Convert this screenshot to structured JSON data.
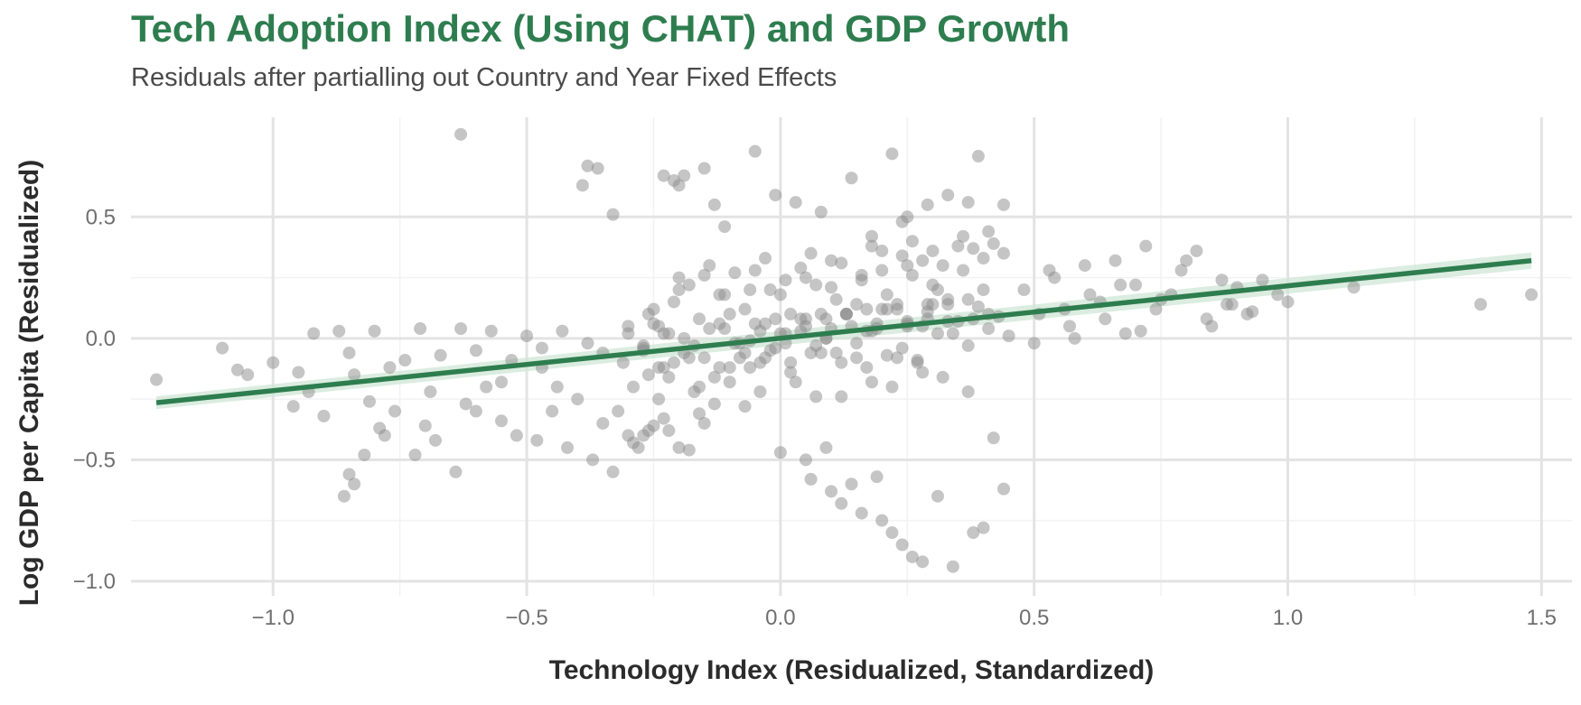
{
  "chart_data": {
    "type": "scatter",
    "title": "Tech Adoption Index (Using CHAT) and GDP Growth",
    "subtitle": "Residuals after partialling out Country and Year Fixed Effects",
    "xlabel": "Technology Index (Residualized, Standardized)",
    "ylabel": "Log GDP per Capita (Residualized)",
    "xlim": [
      -1.28,
      1.56
    ],
    "ylim": [
      -1.06,
      0.91
    ],
    "x_ticks": [
      -1.0,
      -0.5,
      0.0,
      0.5,
      1.0,
      1.5
    ],
    "x_tick_labels": [
      "−1.0",
      "−0.5",
      "0.0",
      "0.5",
      "1.0",
      "1.5"
    ],
    "y_ticks": [
      -1.0,
      -0.5,
      0.0,
      0.5
    ],
    "y_tick_labels": [
      "−1.0",
      "−0.5",
      "0.0",
      "0.5"
    ],
    "grid": true,
    "point_color": "#8c8c8c",
    "line_color": "#2e7d4f",
    "ci_color": "#cfe6d6",
    "fit_line": {
      "x": [
        -1.23,
        1.48
      ],
      "y": [
        -0.265,
        0.32
      ]
    },
    "series": [
      {
        "x": [
          -0.63,
          -0.38,
          -0.36,
          -0.39,
          -0.23,
          -0.21,
          -0.19,
          -0.2,
          -0.15,
          -0.13,
          -0.33,
          -0.11,
          -0.05,
          -0.01,
          0.03,
          0.08,
          0.14,
          0.22,
          0.24,
          0.29,
          0.33,
          0.39,
          0.37,
          0.25,
          0.18,
          0.44,
          0.41,
          -1.23,
          -1.1,
          -1.07,
          -1.05,
          -1.0,
          -0.95,
          -0.92,
          -0.87,
          -0.85,
          -0.84,
          -0.8,
          -0.77,
          -0.74,
          -0.71,
          -0.67,
          -0.63,
          -0.6,
          -0.57,
          -0.53,
          -0.5,
          -0.47,
          -0.43,
          -0.38,
          -0.35,
          -0.3,
          -0.27,
          -0.25,
          -0.24,
          -0.86,
          -0.85,
          -0.84,
          -0.82,
          -0.79,
          -0.76,
          -0.69,
          -0.62,
          -0.58,
          -0.55,
          -0.52,
          -0.48,
          -0.45,
          -0.42,
          -0.37,
          -0.33,
          -0.29,
          -0.27,
          -0.25,
          -0.23,
          -0.22,
          -0.2,
          -0.18,
          -0.16,
          -0.15,
          -0.13,
          -0.1,
          -0.08,
          -0.06,
          -0.04,
          -0.02,
          0.0,
          0.02,
          0.05,
          0.07,
          0.09,
          0.11,
          0.13,
          0.15,
          0.17,
          0.19,
          0.21,
          0.23,
          0.25,
          0.27,
          0.29,
          0.31,
          0.33,
          0.35,
          0.37,
          0.39,
          0.41,
          0.43,
          0.45,
          -0.2,
          -0.18,
          -0.14,
          -0.12,
          -0.09,
          -0.06,
          -0.03,
          0.01,
          0.04,
          0.06,
          0.1,
          0.12,
          0.16,
          0.18,
          0.2,
          0.24,
          0.26,
          0.28,
          0.3,
          0.32,
          0.36,
          0.38,
          0.4,
          0.42,
          0.44,
          0.48,
          0.51,
          0.54,
          0.57,
          0.6,
          0.63,
          0.66,
          0.68,
          0.7,
          0.72,
          0.74,
          0.77,
          0.79,
          0.82,
          0.84,
          0.87,
          0.89,
          0.92,
          0.95,
          0.98,
          1.0,
          1.13,
          1.38,
          1.48,
          0.5,
          0.53,
          0.56,
          0.58,
          0.61,
          0.64,
          0.67,
          0.71,
          0.75,
          0.8,
          0.85,
          0.88,
          0.9,
          0.93,
          0.06,
          0.1,
          0.14,
          0.16,
          0.2,
          0.22,
          0.24,
          0.26,
          0.28,
          0.31,
          0.34,
          0.38,
          0.4,
          0.42,
          0.44,
          0.19,
          0.12,
          0.09,
          0.05,
          0.0,
          -0.3,
          -0.28,
          -0.26,
          -0.32,
          -0.35,
          -0.4,
          -0.44,
          -0.47,
          -0.55,
          -0.6,
          -0.64,
          -0.68,
          -0.72,
          -0.9,
          -0.93,
          -0.96,
          -0.78,
          -0.81,
          -0.7,
          -0.3,
          -0.25,
          -0.2,
          -0.15,
          -0.1,
          -0.05,
          0.0,
          0.05,
          0.1,
          0.15,
          0.2,
          0.25,
          0.3,
          0.35,
          0.4,
          -0.29,
          -0.26,
          -0.24,
          -0.21,
          -0.17,
          -0.12,
          -0.07,
          -0.03,
          0.03,
          0.08,
          0.12,
          0.17,
          0.22,
          0.27,
          0.32,
          0.37,
          -0.27,
          -0.22,
          -0.18,
          -0.14,
          -0.09,
          -0.05,
          -0.01,
          0.04,
          0.09,
          0.13,
          0.18,
          0.23,
          0.28,
          0.33,
          0.38,
          -0.26,
          -0.21,
          -0.16,
          -0.11,
          -0.07,
          -0.02,
          0.02,
          0.07,
          0.11,
          0.16,
          0.21,
          0.26,
          0.31,
          0.36,
          -0.24,
          -0.19,
          -0.13,
          -0.08,
          -0.04,
          0.01,
          0.06,
          0.1,
          0.15,
          0.19,
          0.24,
          0.29,
          0.34,
          -0.23,
          -0.17,
          -0.12,
          -0.06,
          -0.01,
          0.04,
          0.08,
          0.14,
          0.2,
          0.25,
          0.3,
          -0.22,
          -0.16,
          -0.1,
          -0.04,
          0.02,
          0.07,
          0.12,
          0.18,
          0.23,
          0.28,
          -0.31,
          -0.27,
          -0.23,
          -0.19,
          -0.15,
          -0.11,
          -0.07,
          -0.03,
          0.01,
          0.05,
          0.09,
          0.13,
          0.17,
          0.21,
          0.25,
          0.29,
          0.33,
          0.37,
          0.41
        ],
        "y": [
          0.84,
          0.71,
          0.7,
          0.63,
          0.67,
          0.65,
          0.67,
          0.63,
          0.7,
          0.55,
          0.51,
          0.46,
          0.77,
          0.59,
          0.56,
          0.52,
          0.66,
          0.76,
          0.48,
          0.55,
          0.59,
          0.75,
          0.56,
          0.5,
          0.42,
          0.55,
          0.44,
          -0.17,
          -0.04,
          -0.13,
          -0.15,
          -0.1,
          -0.14,
          0.02,
          0.03,
          -0.06,
          -0.15,
          0.03,
          -0.12,
          -0.09,
          0.04,
          -0.07,
          0.04,
          -0.05,
          0.03,
          -0.09,
          0.01,
          -0.04,
          0.03,
          -0.02,
          -0.06,
          0.02,
          -0.03,
          0.06,
          0.05,
          -0.65,
          -0.56,
          -0.6,
          -0.48,
          -0.37,
          -0.3,
          -0.22,
          -0.27,
          -0.2,
          -0.34,
          -0.4,
          -0.42,
          -0.3,
          -0.45,
          -0.5,
          -0.55,
          -0.43,
          -0.4,
          -0.36,
          -0.33,
          -0.38,
          -0.45,
          -0.46,
          -0.31,
          -0.35,
          -0.27,
          -0.18,
          -0.08,
          -0.12,
          0.03,
          -0.05,
          0.02,
          -0.1,
          0.05,
          -0.03,
          0.08,
          -0.06,
          0.1,
          -0.02,
          0.12,
          0.04,
          -0.07,
          0.14,
          0.06,
          -0.09,
          0.11,
          0.02,
          0.16,
          0.07,
          -0.03,
          0.13,
          0.04,
          0.09,
          0.01,
          0.25,
          0.22,
          0.3,
          0.18,
          0.27,
          0.2,
          0.33,
          0.24,
          0.29,
          0.35,
          0.21,
          0.31,
          0.26,
          0.38,
          0.28,
          0.34,
          0.4,
          0.32,
          0.36,
          0.3,
          0.42,
          0.37,
          0.33,
          0.39,
          0.35,
          0.2,
          0.1,
          0.25,
          0.05,
          0.3,
          0.15,
          0.32,
          0.02,
          0.22,
          0.38,
          0.12,
          0.18,
          0.28,
          0.36,
          0.08,
          0.24,
          0.14,
          0.1,
          0.24,
          0.18,
          0.15,
          0.21,
          0.14,
          0.18,
          -0.02,
          0.28,
          0.12,
          0.0,
          0.18,
          0.08,
          0.22,
          0.03,
          0.16,
          0.32,
          0.05,
          0.14,
          0.21,
          0.11,
          -0.58,
          -0.63,
          -0.6,
          -0.72,
          -0.75,
          -0.8,
          -0.85,
          -0.9,
          -0.92,
          -0.65,
          -0.94,
          -0.8,
          -0.78,
          -0.41,
          -0.62,
          -0.57,
          -0.68,
          -0.45,
          -0.5,
          -0.47,
          -0.4,
          -0.45,
          -0.38,
          -0.3,
          -0.35,
          -0.25,
          -0.2,
          -0.12,
          -0.18,
          -0.3,
          -0.55,
          -0.42,
          -0.48,
          -0.32,
          -0.22,
          -0.28,
          -0.4,
          -0.26,
          -0.36,
          0.05,
          0.12,
          0.2,
          0.26,
          0.1,
          0.28,
          0.18,
          0.25,
          0.32,
          0.14,
          0.36,
          0.3,
          0.22,
          0.38,
          0.2,
          -0.2,
          -0.15,
          -0.25,
          -0.1,
          -0.22,
          -0.12,
          -0.28,
          -0.08,
          -0.18,
          -0.06,
          -0.24,
          -0.12,
          -0.2,
          -0.1,
          -0.16,
          -0.22,
          -0.05,
          0.02,
          -0.08,
          0.04,
          -0.02,
          0.06,
          -0.04,
          0.08,
          0.0,
          0.1,
          0.03,
          0.12,
          0.05,
          0.14,
          0.08,
          0.1,
          0.15,
          0.08,
          0.18,
          0.12,
          0.2,
          0.1,
          0.22,
          0.16,
          0.24,
          0.18,
          0.26,
          0.2,
          0.28,
          -0.12,
          -0.06,
          -0.16,
          -0.02,
          -0.1,
          0.02,
          -0.06,
          0.04,
          -0.08,
          0.06,
          -0.04,
          0.08,
          0.02,
          0.02,
          -0.03,
          0.06,
          -0.01,
          0.08,
          0.03,
          0.1,
          0.05,
          0.12,
          0.07,
          0.14,
          -0.16,
          -0.2,
          -0.12,
          -0.22,
          -0.14,
          -0.24,
          -0.1,
          -0.18,
          -0.08,
          -0.14,
          -0.1,
          -0.04,
          -0.12,
          0.0,
          -0.08,
          0.04,
          -0.06,
          0.06,
          -0.02,
          0.08,
          0.0,
          0.1,
          0.03,
          0.12,
          0.05,
          0.14,
          0.07,
          0.16,
          0.1
        ]
      }
    ]
  }
}
